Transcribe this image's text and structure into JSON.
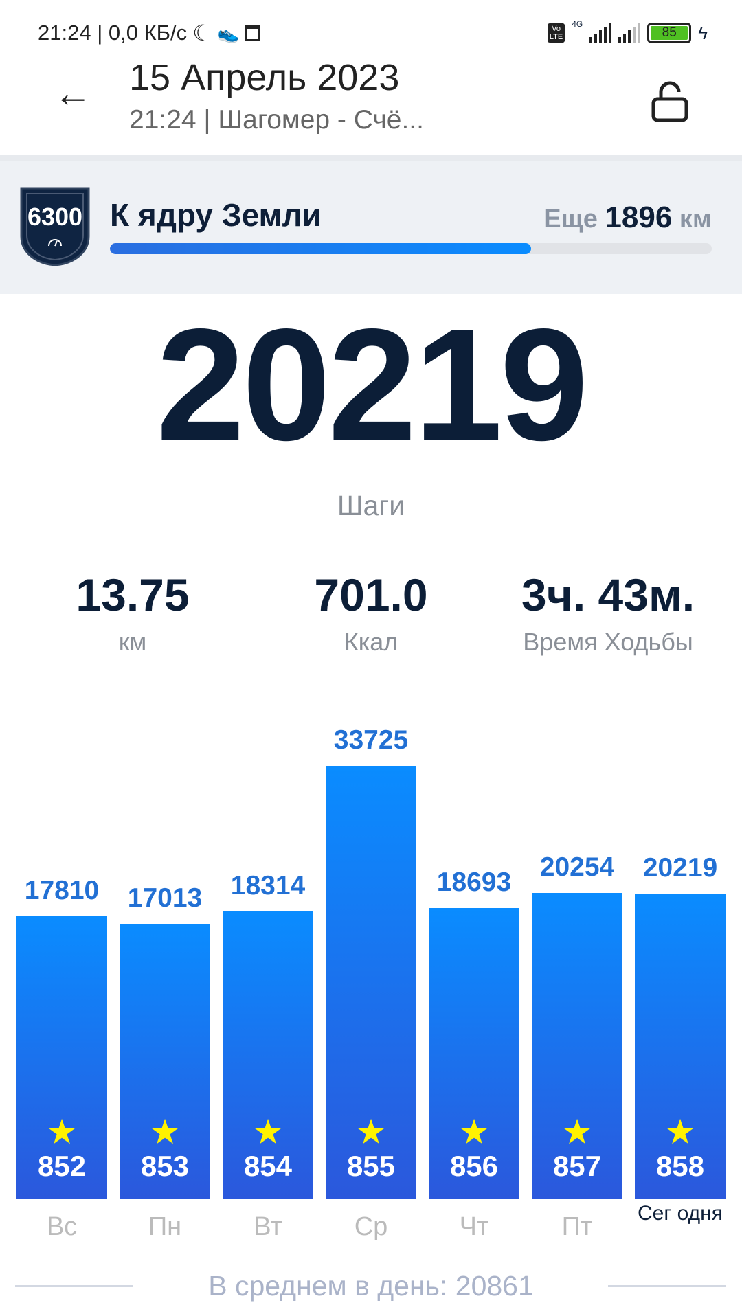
{
  "status_bar": {
    "time_speed": "21:24 | 0,0 КБ/с",
    "network": "4G",
    "battery": "85",
    "icons": [
      "moon-icon",
      "shoe-icon",
      "calendar-icon",
      "volte-icon",
      "signal-icon",
      "battery-icon",
      "charging-icon"
    ]
  },
  "header": {
    "title": "15 Апрель 2023",
    "subtitle": "21:24 | Шагомер - Счё...",
    "back_icon": "arrow-left-icon",
    "lock_icon": "unlock-icon"
  },
  "goal": {
    "badge": "6300",
    "title": "К ядру Земли",
    "remain_prefix": "Еще",
    "remain_value": "1896",
    "remain_unit": "км",
    "progress_percent": 70,
    "accent": "#0a8cff"
  },
  "summary": {
    "steps": "20219",
    "steps_label": "Шаги",
    "stats": [
      {
        "value": "13.75",
        "label": "км"
      },
      {
        "value": "701.0",
        "label": "Ккал"
      },
      {
        "value": "3ч. 43м.",
        "label": "Время Ходьбы"
      }
    ]
  },
  "chart_data": {
    "type": "bar",
    "categories": [
      "Вс",
      "Пн",
      "Вт",
      "Ср",
      "Чт",
      "Пт",
      "Сег одня"
    ],
    "values": [
      17810,
      17013,
      18314,
      33725,
      18693,
      20254,
      20219
    ],
    "day_numbers": [
      "852",
      "853",
      "854",
      "855",
      "856",
      "857",
      "858"
    ],
    "value_labels": [
      "17810",
      "17013",
      "18314",
      "33725",
      "18693",
      "20254",
      "20219"
    ],
    "star_icon": "star-icon",
    "star_color": "#fff200",
    "bar_color_top": "#0a8cff",
    "bar_color_bottom": "#2b58dc"
  },
  "average": "В среднем в день: 20861"
}
